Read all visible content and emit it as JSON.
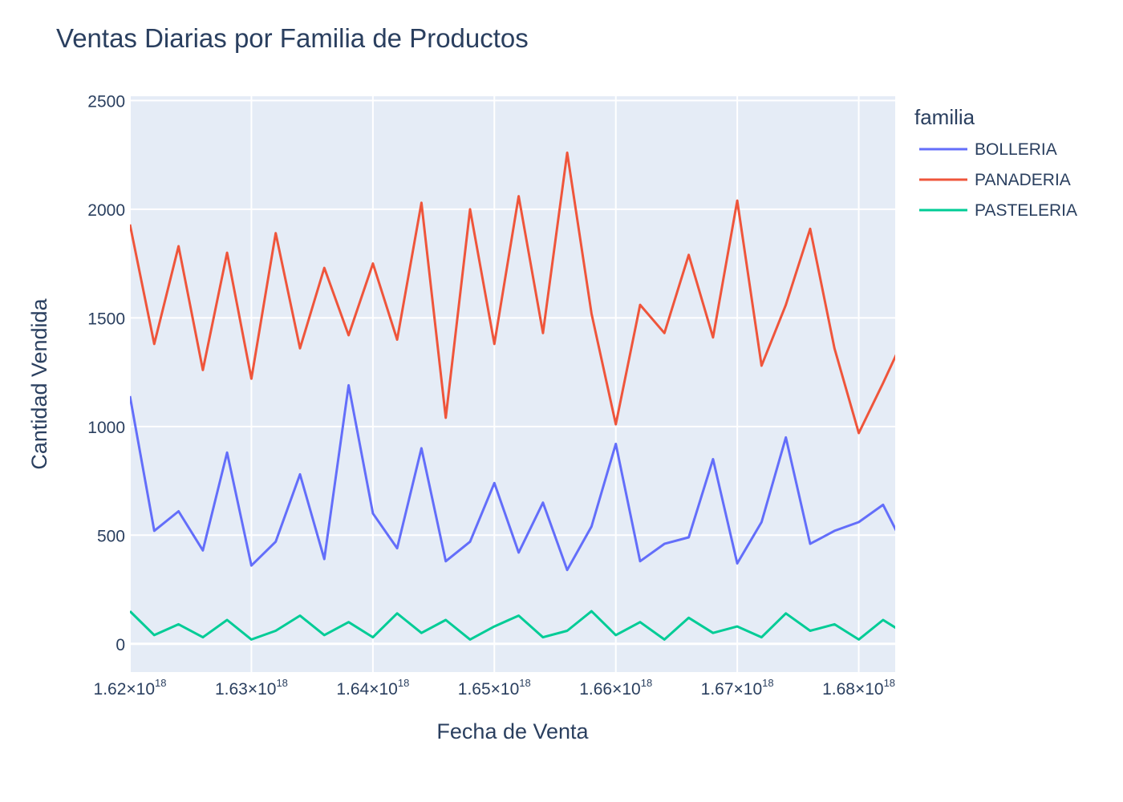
{
  "chart_data": {
    "type": "line",
    "title": "Ventas Diarias por Familia de Productos",
    "xlabel": "Fecha de Venta",
    "ylabel": "Cantidad Vendida",
    "xlim": [
      1.62e+18,
      1.683e+18
    ],
    "ylim": [
      -130,
      2520
    ],
    "x_ticks": [
      {
        "value": 1.62e+18,
        "mantissa": "1.62",
        "exponent": "18"
      },
      {
        "value": 1.63e+18,
        "mantissa": "1.63",
        "exponent": "18"
      },
      {
        "value": 1.64e+18,
        "mantissa": "1.64",
        "exponent": "18"
      },
      {
        "value": 1.65e+18,
        "mantissa": "1.65",
        "exponent": "18"
      },
      {
        "value": 1.66e+18,
        "mantissa": "1.66",
        "exponent": "18"
      },
      {
        "value": 1.67e+18,
        "mantissa": "1.67",
        "exponent": "18"
      },
      {
        "value": 1.68e+18,
        "mantissa": "1.68",
        "exponent": "18"
      }
    ],
    "y_ticks": [
      0,
      500,
      1000,
      1500,
      2000,
      2500
    ],
    "grid": true,
    "plot_bg": "#e5ecf6",
    "legend": {
      "title": "familia",
      "placement": "right"
    },
    "x_start": 1.62e+18,
    "x_step": 2000000000000000.0,
    "series": [
      {
        "name": "BOLLERIA",
        "color": "#636efa",
        "values": [
          1140,
          520,
          610,
          430,
          880,
          360,
          470,
          780,
          390,
          1190,
          600,
          440,
          900,
          380,
          470,
          740,
          420,
          650,
          340,
          540,
          920,
          380,
          460,
          490,
          850,
          370,
          560,
          950,
          460,
          520,
          560,
          640,
          420,
          780,
          560,
          420,
          710,
          330,
          600,
          470,
          640,
          320,
          560,
          470,
          620,
          380,
          640,
          470,
          580,
          350,
          700,
          500,
          400,
          820,
          470,
          560,
          930,
          390,
          620,
          790,
          460,
          660,
          580,
          970,
          480,
          730,
          960,
          480,
          800,
          1070,
          570,
          660,
          830,
          380,
          720,
          1000,
          500,
          790,
          700,
          460,
          650,
          430,
          820,
          510,
          1000,
          620,
          480,
          1030,
          270,
          640,
          960,
          560,
          1110,
          1210,
          520,
          1160,
          740,
          1140,
          580,
          1100,
          890,
          550,
          1080,
          700,
          460,
          790,
          960,
          610,
          390,
          1070,
          520,
          850,
          620,
          930,
          490,
          1120,
          800,
          560,
          700,
          550,
          910,
          490,
          760,
          600,
          830,
          360,
          680,
          940,
          450,
          650,
          480,
          860,
          390,
          620,
          750,
          410,
          680,
          330,
          700,
          450,
          610,
          370,
          620,
          570,
          710,
          380,
          640,
          450,
          660,
          330,
          600,
          750,
          430,
          550,
          700,
          460,
          840,
          560,
          1130,
          630,
          760,
          640,
          520,
          990,
          600,
          740,
          380,
          960,
          860,
          1040,
          640,
          920,
          790,
          1080,
          560,
          1080,
          640,
          740,
          980,
          570,
          1110,
          640,
          1010,
          900,
          620,
          1110,
          720,
          960,
          640,
          990,
          580,
          1140,
          700,
          760,
          600,
          1120,
          530,
          240,
          1140,
          580,
          980,
          700,
          1120,
          740,
          990,
          720,
          1120,
          640,
          1000,
          760,
          920,
          560,
          1080,
          640,
          980,
          520,
          1020,
          600,
          950,
          590,
          900,
          550,
          860,
          600,
          960,
          540,
          1050,
          580,
          600
        ]
      },
      {
        "name": "PANADERIA",
        "color": "#ef553b",
        "values": [
          1930,
          1380,
          1830,
          1260,
          1800,
          1220,
          1890,
          1360,
          1730,
          1420,
          1750,
          1400,
          2030,
          1040,
          2000,
          1380,
          2060,
          1430,
          2260,
          1520,
          1010,
          1560,
          1430,
          1790,
          1410,
          2040,
          1280,
          1560,
          1910,
          1360,
          970,
          1200,
          1440,
          1690,
          1180,
          1570,
          1860,
          1290,
          1620,
          1220,
          1520,
          1380,
          1680,
          1290,
          1590,
          1480,
          1720,
          1320,
          1570,
          1250,
          1680,
          1420,
          1770,
          1320,
          1990,
          1200,
          1870,
          1460,
          2310,
          1380,
          1470,
          1440,
          1990,
          1260,
          1580,
          2140,
          950,
          1590,
          1380,
          1680,
          1240,
          1470,
          1610,
          2240,
          1280,
          1540,
          1630,
          1130,
          1590,
          1410,
          1690,
          1300,
          2410,
          1440,
          1410,
          1220,
          1650,
          1260,
          1560,
          1330,
          1380,
          1240,
          1620,
          1180,
          1440,
          1590,
          1380,
          1140,
          1470,
          1390,
          1500,
          1270,
          1380,
          1230,
          1290,
          1130,
          1360,
          1090,
          1620,
          1300,
          1430,
          1080,
          1300,
          1140,
          1560,
          1140,
          1350,
          1060,
          1640,
          1020,
          1800,
          1150,
          1260,
          1100,
          1510,
          1040,
          1470,
          1060,
          1870,
          1330,
          1400,
          1030,
          1500,
          900,
          1610,
          1020,
          1320,
          1040,
          1420,
          1200,
          1680,
          1340,
          1330,
          1040,
          1360,
          1100,
          1460,
          1120,
          1350,
          1060,
          1540,
          1100,
          1280,
          1170,
          1360,
          1240,
          1410,
          1080,
          1160,
          1020,
          1280,
          1100,
          1410,
          1170,
          1340,
          1040,
          1300,
          820,
          1250,
          1060,
          1270,
          1130,
          1500,
          950,
          1200,
          1100,
          1700,
          1030,
          1220,
          1200,
          1330,
          1000,
          1370,
          1080,
          1240,
          1160,
          1500,
          900,
          2130,
          1360,
          1090,
          1240,
          980,
          1430,
          1180,
          1420,
          920,
          1270,
          1010,
          1510,
          1150,
          1330,
          1150,
          1350,
          680,
          1190,
          880,
          1460,
          1150,
          1560,
          970,
          1420,
          1010,
          1230,
          1230,
          1970,
          940,
          1290,
          1050,
          1120,
          1810,
          920,
          1160,
          1780,
          1000,
          1460,
          910,
          1650,
          1000,
          1550,
          1040,
          1590,
          950,
          1450,
          1070,
          1640,
          960,
          1730,
          1040,
          1300,
          1020,
          1120,
          1310,
          1620,
          1060,
          1150,
          1150,
          1210,
          1080,
          1450,
          1110,
          1390,
          1100,
          1180,
          1280,
          1030,
          1080,
          1280,
          980,
          1700,
          1060,
          1460,
          950,
          1220,
          920,
          1520,
          1010,
          1460,
          1000,
          1170,
          880,
          1180,
          1050,
          1220,
          1000,
          1550,
          1080,
          1260,
          840,
          1200,
          1000,
          1460,
          800,
          1310,
          920,
          1200,
          1360,
          1050,
          850,
          1270,
          1180,
          1100,
          940,
          1110,
          980,
          1450,
          960,
          1080,
          1050,
          1320,
          1010,
          1200,
          1120,
          1280,
          980,
          1350,
          960,
          1150,
          1050,
          1980,
          1250,
          1110,
          1170,
          1680,
          970,
          1250,
          1080,
          1360,
          900,
          1170,
          990,
          1550,
          940,
          1360,
          1050,
          1510,
          920,
          1210,
          840,
          1440,
          1030,
          1310,
          950,
          1480,
          880,
          1200,
          990,
          1370,
          1000,
          1470,
          850,
          1210,
          870,
          1330,
          950,
          1150,
          800,
          1160,
          900,
          1330,
          780,
          1220,
          880,
          1170,
          760,
          1130,
          850,
          1580,
          900,
          1140,
          820,
          1180,
          780,
          1030,
          870,
          1460,
          880,
          1210,
          810,
          1090,
          740,
          1200,
          850,
          1180,
          720,
          1020,
          610,
          1180,
          840,
          1210
        ]
      },
      {
        "name": "PASTELERIA",
        "color": "#00cc96",
        "values": [
          150,
          40,
          90,
          30,
          110,
          20,
          60,
          130,
          40,
          100,
          30,
          140,
          50,
          110,
          20,
          80,
          130,
          30,
          60,
          150,
          40,
          100,
          20,
          120,
          50,
          80,
          30,
          140,
          60,
          90,
          20,
          110,
          40,
          70,
          130,
          30,
          90,
          50,
          120,
          20,
          80,
          60,
          140,
          30,
          100,
          50,
          70,
          20,
          120,
          40,
          90,
          60,
          110,
          30,
          80,
          20,
          130,
          50,
          70,
          40,
          120,
          30,
          90,
          20,
          110,
          60,
          140,
          40,
          80,
          30,
          100,
          50,
          130,
          20,
          70,
          60,
          120,
          30,
          90,
          40,
          110,
          20,
          80,
          60,
          140,
          30,
          100,
          50,
          70,
          20,
          120,
          40,
          90,
          60,
          110,
          30,
          80,
          20,
          130,
          50,
          70,
          40,
          120,
          30,
          90,
          20,
          110,
          60,
          150,
          40,
          80,
          30,
          100,
          50,
          130,
          20,
          70,
          60,
          120,
          30,
          90,
          40,
          110,
          20,
          80,
          60,
          140,
          30,
          100,
          50,
          70,
          20,
          120,
          40,
          90,
          60,
          110,
          30,
          80,
          20,
          130,
          50,
          70,
          40,
          120,
          30,
          90,
          20,
          110,
          60,
          140,
          40,
          80,
          30,
          100,
          50,
          130,
          20,
          70,
          60,
          120,
          30,
          90,
          40,
          110,
          20,
          80,
          60,
          140,
          30,
          100,
          50,
          70,
          20,
          120,
          40,
          90,
          60,
          110,
          30,
          80,
          20,
          130,
          50,
          70,
          40,
          120,
          30,
          90,
          20,
          110,
          60,
          140,
          40,
          80,
          30,
          100,
          50,
          130,
          20,
          70,
          60,
          120,
          30,
          90,
          40,
          110,
          20,
          80,
          60,
          140,
          30,
          100,
          50,
          70,
          20,
          130
        ]
      }
    ]
  }
}
